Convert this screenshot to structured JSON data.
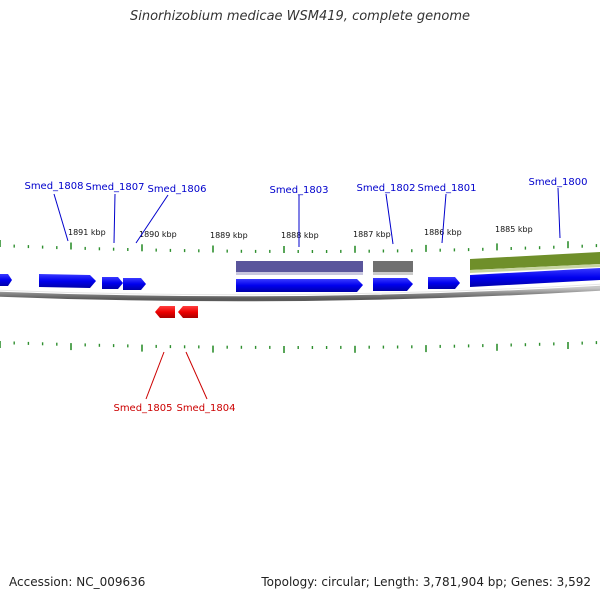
{
  "title": "Sinorhizobium medicae WSM419, complete genome",
  "footer": {
    "accession": "Accession: NC_009636",
    "topology": "Topology: circular; Length: 3,781,904 bp; Genes: 3,592"
  },
  "colors": {
    "forward_gene": "#0000ee",
    "reverse_gene": "#ee0000",
    "forward_label": "#0000cc",
    "reverse_label": "#cc0000",
    "tick": "#2f8f2f",
    "backbone": "#888888",
    "feature_purple": "#5a559c",
    "feature_gray": "#707070",
    "feature_olive": "#6f8f2a"
  },
  "scale_labels": [
    "1891 kbp",
    "1890 kbp",
    "1889 kbp",
    "1888 kbp",
    "1887 kbp",
    "1886 kbp",
    "1885 kbp"
  ],
  "forward_gene_labels": [
    "Smed_1808",
    "Smed_1807",
    "Smed_1806",
    "Smed_1803",
    "Smed_1802",
    "Smed_1801",
    "Smed_1800"
  ],
  "reverse_gene_labels": [
    "Smed_1805",
    "Smed_1804"
  ]
}
